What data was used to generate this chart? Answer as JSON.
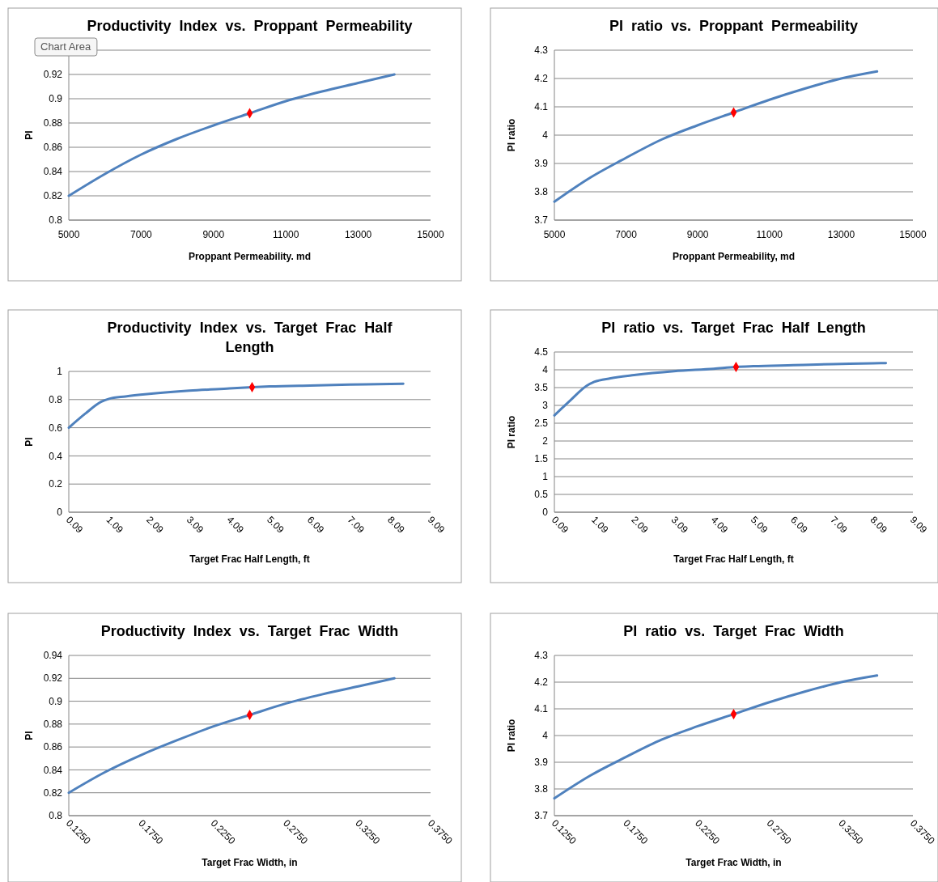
{
  "chart_data": [
    {
      "type": "line",
      "title": "Productivity  Index  vs.  Proppant  Permeability",
      "xlabel": "Proppant Permeability. md",
      "ylabel": "PI",
      "xlim": [
        5000,
        15000
      ],
      "xticks": [
        5000,
        7000,
        9000,
        11000,
        13000,
        15000
      ],
      "ylim": [
        0.8,
        0.94
      ],
      "yticks": [
        0.8,
        0.82,
        0.84,
        0.86,
        0.88,
        0.9,
        0.92,
        {
          "value": 0.94,
          "label": null
        }
      ],
      "grid": "y",
      "annotations": [
        "Chart Area"
      ],
      "series": [
        {
          "type": "line",
          "color": "#4f81bd",
          "x": [
            5000,
            6000,
            7000,
            8000,
            9000,
            10000,
            11000,
            12000,
            13000,
            14000
          ],
          "values": [
            0.82,
            0.838,
            0.854,
            0.867,
            0.878,
            0.888,
            0.898,
            0.906,
            0.913,
            0.92
          ]
        },
        {
          "type": "scatter",
          "color": "#ff0000",
          "marker": "diamond",
          "x": [
            10000
          ],
          "values": [
            0.888
          ]
        }
      ]
    },
    {
      "type": "line",
      "title": "PI  ratio  vs.  Proppant  Permeability",
      "xlabel": "Proppant Permeability, md",
      "ylabel": "PI ratio",
      "xlim": [
        5000,
        15000
      ],
      "xticks": [
        5000,
        7000,
        9000,
        11000,
        13000,
        15000
      ],
      "ylim": [
        3.7,
        4.3
      ],
      "yticks": [
        3.7,
        3.8,
        3.9,
        4,
        4.1,
        4.2,
        4.3
      ],
      "grid": "y",
      "series": [
        {
          "type": "line",
          "color": "#4f81bd",
          "x": [
            5000,
            6000,
            7000,
            8000,
            9000,
            10000,
            11000,
            12000,
            13000,
            14000
          ],
          "values": [
            3.765,
            3.85,
            3.92,
            3.985,
            4.035,
            4.08,
            4.125,
            4.165,
            4.2,
            4.225
          ]
        },
        {
          "type": "scatter",
          "color": "#ff0000",
          "marker": "diamond",
          "x": [
            10000
          ],
          "values": [
            4.08
          ]
        }
      ]
    },
    {
      "type": "line",
      "title": "Productivity  Index  vs.  Target  Frac  Half  Length",
      "xlabel": "Target Frac Half Length, ft",
      "ylabel": "PI",
      "xlim": [
        0.09,
        9.09
      ],
      "xticks": [
        0.09,
        1.09,
        2.09,
        3.09,
        4.09,
        5.09,
        6.09,
        7.09,
        8.09,
        9.09
      ],
      "ylim": [
        0,
        1
      ],
      "yticks": [
        0,
        0.2,
        0.4,
        0.6,
        0.8,
        1
      ],
      "grid": "y",
      "series": [
        {
          "type": "line",
          "color": "#4f81bd",
          "x": [
            0.09,
            0.5,
            0.9,
            1.09,
            1.5,
            2.09,
            3.09,
            4.09,
            4.65,
            5.09,
            6.09,
            7.09,
            8.09,
            8.41
          ],
          "values": [
            0.6,
            0.7,
            0.785,
            0.805,
            0.822,
            0.84,
            0.863,
            0.879,
            0.888,
            0.893,
            0.9,
            0.906,
            0.911,
            0.913
          ]
        },
        {
          "type": "scatter",
          "color": "#ff0000",
          "marker": "diamond",
          "x": [
            4.65
          ],
          "values": [
            0.888
          ]
        }
      ]
    },
    {
      "type": "line",
      "title": "PI  ratio  vs.  Target  Frac  Half  Length",
      "xlabel": "Target Frac Half Length, ft",
      "ylabel": "PI ratio",
      "xlim": [
        0.09,
        9.09
      ],
      "xticks": [
        0.09,
        1.09,
        2.09,
        3.09,
        4.09,
        5.09,
        6.09,
        7.09,
        8.09,
        9.09
      ],
      "ylim": [
        0,
        4.5
      ],
      "yticks": [
        0,
        0.5,
        1,
        1.5,
        2,
        2.5,
        3,
        3.5,
        4,
        4.5
      ],
      "grid": "y",
      "series": [
        {
          "type": "line",
          "color": "#4f81bd",
          "x": [
            0.09,
            0.5,
            0.9,
            1.09,
            1.5,
            2.09,
            3.09,
            4.09,
            4.65,
            5.09,
            6.09,
            7.09,
            8.09,
            8.41
          ],
          "values": [
            2.72,
            3.15,
            3.55,
            3.66,
            3.76,
            3.85,
            3.96,
            4.03,
            4.08,
            4.1,
            4.13,
            4.16,
            4.18,
            4.19
          ]
        },
        {
          "type": "scatter",
          "color": "#ff0000",
          "marker": "diamond",
          "x": [
            4.65
          ],
          "values": [
            4.08
          ]
        }
      ]
    },
    {
      "type": "line",
      "title": "Productivity  Index  vs.  Target  Frac  Width",
      "xlabel": "Target Frac Width, in",
      "ylabel": "PI",
      "xlim": [
        0.125,
        0.375
      ],
      "xticks": [
        {
          "value": 0.125,
          "label": "0.1250"
        },
        {
          "value": 0.175,
          "label": "0.1750"
        },
        {
          "value": 0.225,
          "label": "0.2250"
        },
        {
          "value": 0.275,
          "label": "0.2750"
        },
        {
          "value": 0.325,
          "label": "0.3250"
        },
        {
          "value": 0.375,
          "label": "0.3750"
        }
      ],
      "ylim": [
        0.8,
        0.94
      ],
      "yticks": [
        0.8,
        0.82,
        0.84,
        0.86,
        0.88,
        0.9,
        0.92,
        0.94
      ],
      "grid": "y",
      "series": [
        {
          "type": "line",
          "color": "#4f81bd",
          "x": [
            0.125,
            0.15,
            0.175,
            0.2,
            0.225,
            0.25,
            0.275,
            0.3,
            0.325,
            0.35
          ],
          "values": [
            0.82,
            0.838,
            0.853,
            0.866,
            0.878,
            0.888,
            0.898,
            0.906,
            0.913,
            0.92
          ]
        },
        {
          "type": "scatter",
          "color": "#ff0000",
          "marker": "diamond",
          "x": [
            0.25
          ],
          "values": [
            0.888
          ]
        }
      ]
    },
    {
      "type": "line",
      "title": "PI  ratio  vs.  Target  Frac  Width",
      "xlabel": "Target Frac Width, in",
      "ylabel": "PI ratio",
      "xlim": [
        0.125,
        0.375
      ],
      "xticks": [
        {
          "value": 0.125,
          "label": "0.1250"
        },
        {
          "value": 0.175,
          "label": "0.1750"
        },
        {
          "value": 0.225,
          "label": "0.2250"
        },
        {
          "value": 0.275,
          "label": "0.2750"
        },
        {
          "value": 0.325,
          "label": "0.3250"
        },
        {
          "value": 0.375,
          "label": "0.3750"
        }
      ],
      "ylim": [
        3.7,
        4.3
      ],
      "yticks": [
        3.7,
        3.8,
        3.9,
        4,
        4.1,
        4.2,
        4.3
      ],
      "grid": "y",
      "series": [
        {
          "type": "line",
          "color": "#4f81bd",
          "x": [
            0.125,
            0.15,
            0.175,
            0.2,
            0.225,
            0.25,
            0.275,
            0.3,
            0.325,
            0.35
          ],
          "values": [
            3.765,
            3.85,
            3.92,
            3.985,
            4.035,
            4.08,
            4.125,
            4.165,
            4.2,
            4.225
          ]
        },
        {
          "type": "scatter",
          "color": "#ff0000",
          "marker": "diamond",
          "x": [
            0.25
          ],
          "values": [
            4.08
          ]
        }
      ]
    }
  ]
}
